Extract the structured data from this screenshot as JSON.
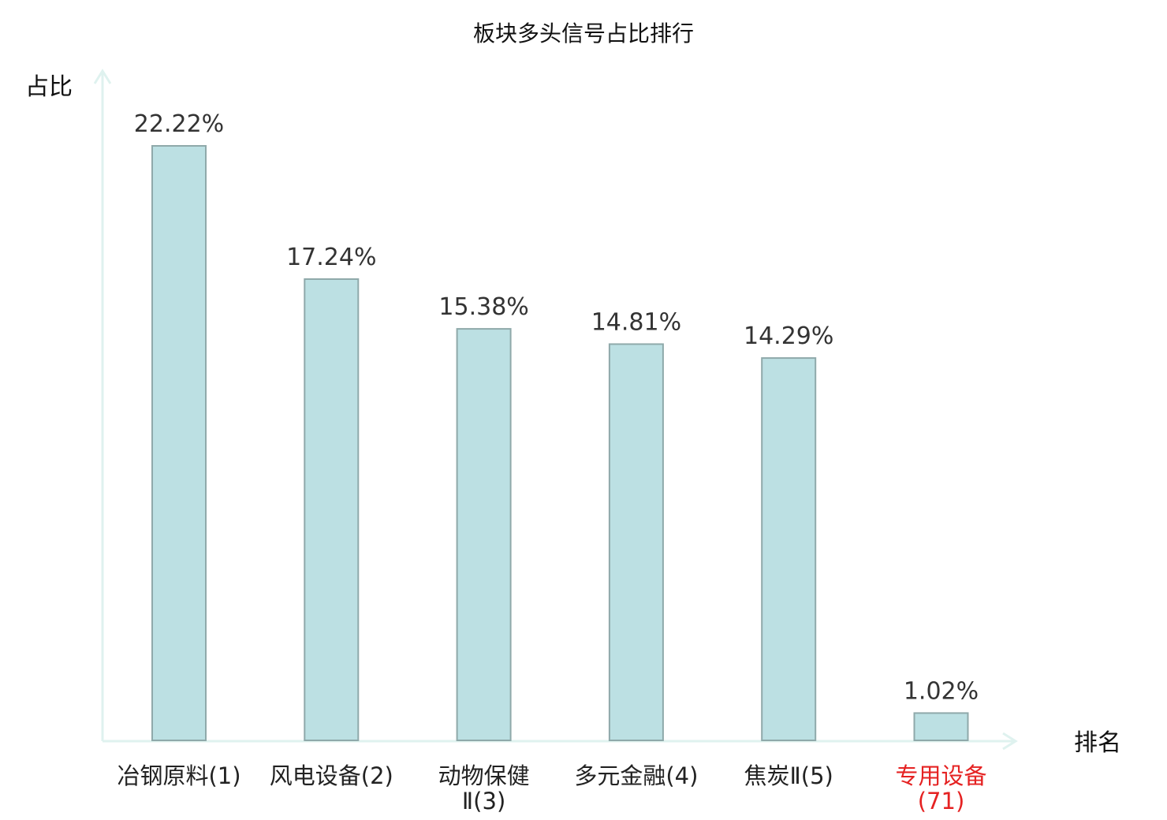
{
  "chart_data": {
    "type": "bar",
    "title": "板块多头信号占比排行",
    "ylabel": "占比",
    "xlabel": "排名",
    "ylim": [
      0,
      25
    ],
    "grid": false,
    "categories": [
      "冶钢原料(1)",
      "风电设备(2)",
      "动物保健Ⅱ(3)",
      "多元金融(4)",
      "焦炭Ⅱ(5)",
      "专用设备(71)"
    ],
    "values": [
      22.22,
      17.24,
      15.38,
      14.81,
      14.29,
      1.02
    ],
    "value_labels": [
      "22.22%",
      "17.24%",
      "15.38%",
      "14.81%",
      "14.29%",
      "1.02%"
    ],
    "highlight_index": 5,
    "colors": {
      "bar_fill": "#bce0e3",
      "bar_stroke": "#8fa9aa",
      "axis": "#dff2ef",
      "highlight_text": "#e52222"
    }
  }
}
